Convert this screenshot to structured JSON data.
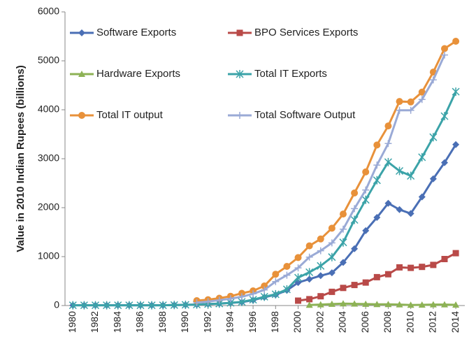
{
  "chart_data": {
    "type": "line",
    "y_label": "Value in 2010 Indian Rupees (billions)",
    "x": [
      1980,
      1981,
      1982,
      1983,
      1984,
      1985,
      1986,
      1987,
      1988,
      1989,
      1990,
      1991,
      1992,
      1993,
      1994,
      1995,
      1996,
      1997,
      1998,
      1999,
      2000,
      2001,
      2002,
      2003,
      2004,
      2005,
      2006,
      2007,
      2008,
      2009,
      2010,
      2011,
      2012,
      2013,
      2014
    ],
    "xlim": [
      1979.3,
      2014.8
    ],
    "xticks": [
      1980,
      1982,
      1984,
      1986,
      1988,
      1990,
      1992,
      1994,
      1996,
      1998,
      2000,
      2002,
      2004,
      2006,
      2008,
      2010,
      2012,
      2014
    ],
    "ylim": [
      0,
      6000
    ],
    "yticks": [
      0,
      1000,
      2000,
      3000,
      4000,
      5000,
      6000
    ],
    "grid": false,
    "legend": "top-left",
    "series": [
      {
        "name": "Software Exports",
        "color": "#4a6fb5",
        "marker": "diamond",
        "values": [
          5,
          5,
          5,
          5,
          5,
          5,
          5,
          5,
          5,
          10,
          15,
          20,
          30,
          40,
          55,
          70,
          110,
          170,
          220,
          310,
          470,
          540,
          610,
          670,
          880,
          1160,
          1530,
          1800,
          2090,
          1960,
          1880,
          2220,
          2590,
          2920,
          3290
        ]
      },
      {
        "name": "BPO Services Exports",
        "color": "#b94a48",
        "marker": "square",
        "values": [
          null,
          null,
          null,
          null,
          null,
          null,
          null,
          null,
          null,
          null,
          null,
          null,
          null,
          null,
          null,
          null,
          null,
          null,
          null,
          null,
          100,
          130,
          190,
          280,
          360,
          420,
          470,
          580,
          640,
          780,
          770,
          790,
          830,
          950,
          1070
        ]
      },
      {
        "name": "Hardware Exports",
        "color": "#8db255",
        "marker": "triangle",
        "values": [
          null,
          null,
          null,
          null,
          null,
          null,
          null,
          null,
          null,
          null,
          null,
          null,
          null,
          null,
          null,
          null,
          null,
          null,
          null,
          null,
          null,
          10,
          20,
          30,
          40,
          35,
          30,
          25,
          25,
          20,
          10,
          15,
          20,
          20,
          15
        ]
      },
      {
        "name": "Total IT Exports",
        "color": "#3ba3a8",
        "marker": "star",
        "values": [
          5,
          5,
          5,
          5,
          5,
          5,
          5,
          5,
          5,
          10,
          15,
          20,
          30,
          40,
          55,
          75,
          120,
          180,
          230,
          330,
          570,
          680,
          810,
          990,
          1290,
          1750,
          2160,
          2560,
          2930,
          2750,
          2650,
          3030,
          3440,
          3870,
          4370
        ]
      },
      {
        "name": "Total IT output",
        "color": "#e8913a",
        "marker": "circle",
        "values": [
          null,
          null,
          null,
          null,
          null,
          null,
          null,
          null,
          null,
          null,
          null,
          100,
          120,
          150,
          190,
          250,
          300,
          400,
          640,
          800,
          980,
          1220,
          1360,
          1580,
          1870,
          2300,
          2730,
          3280,
          3670,
          4170,
          4160,
          4360,
          4770,
          5250,
          5400
        ]
      },
      {
        "name": "Total Software Output",
        "color": "#9aaad6",
        "marker": "plus",
        "values": [
          null,
          null,
          null,
          null,
          null,
          null,
          null,
          null,
          null,
          null,
          null,
          60,
          80,
          110,
          140,
          180,
          240,
          320,
          490,
          620,
          770,
          990,
          1120,
          1280,
          1560,
          1980,
          2360,
          2870,
          3310,
          3990,
          3990,
          4210,
          4610,
          5120,
          null
        ]
      }
    ]
  }
}
